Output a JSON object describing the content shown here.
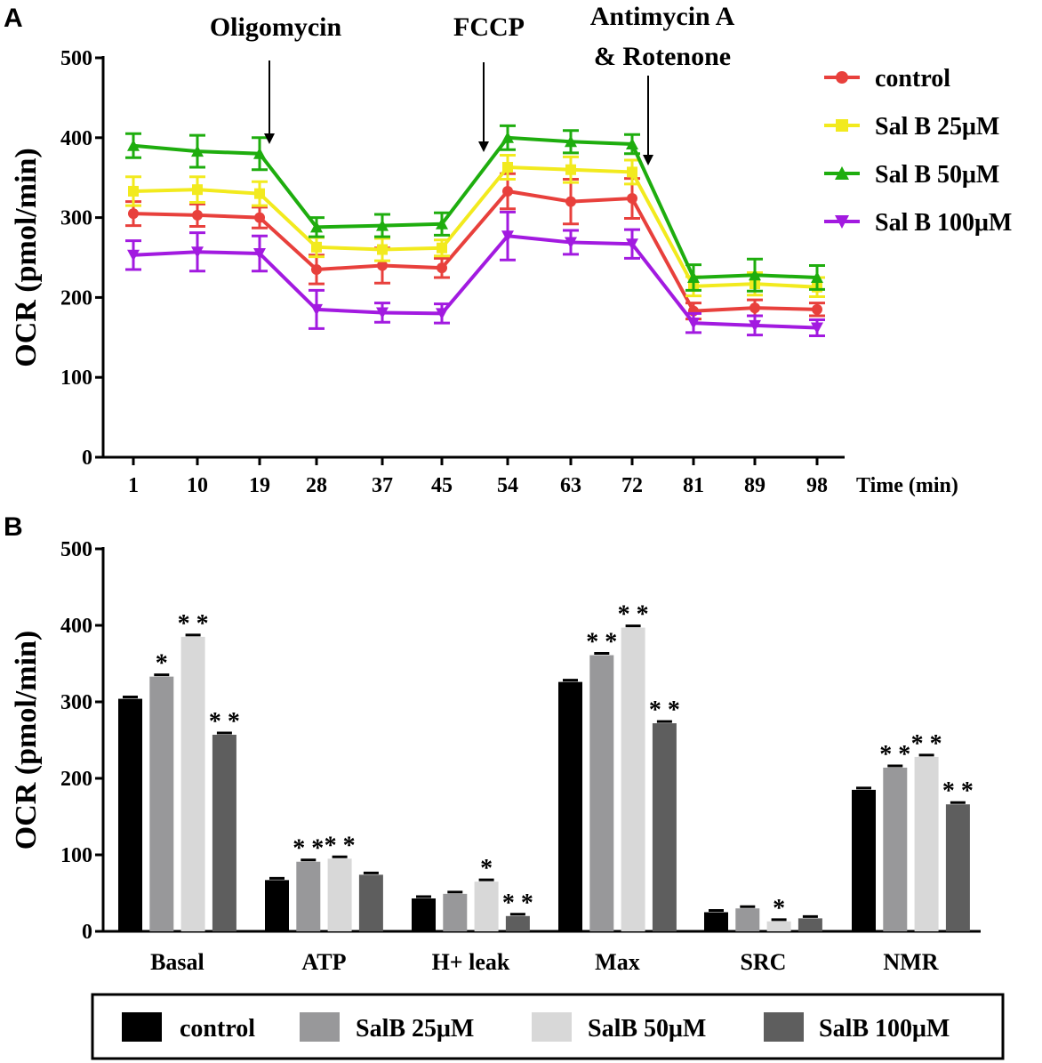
{
  "panel_labels": {
    "a": "A",
    "b": "B"
  },
  "chart_data": [
    {
      "type": "line",
      "panel": "A",
      "title": "",
      "xlabel": "Time (min)",
      "ylabel": "OCR (pmol/min)",
      "ylim": [
        0,
        500
      ],
      "yticks": [
        "0",
        "100",
        "200",
        "300",
        "400",
        "500"
      ],
      "x": [
        "1",
        "10",
        "19",
        "28",
        "37",
        "45",
        "54",
        "63",
        "72",
        "81",
        "89",
        "98"
      ],
      "series": [
        {
          "name": "control",
          "color": "#e8403c",
          "marker": "circle",
          "values": [
            305,
            303,
            300,
            235,
            240,
            237,
            333,
            320,
            324,
            183,
            187,
            185
          ],
          "errors": [
            15,
            14,
            13,
            18,
            22,
            12,
            22,
            28,
            25,
            10,
            10,
            8
          ]
        },
        {
          "name": "Sal B 25μM",
          "color": "#f2ea1e",
          "marker": "square",
          "values": [
            333,
            335,
            330,
            263,
            260,
            262,
            363,
            360,
            357,
            214,
            217,
            213
          ],
          "errors": [
            18,
            16,
            15,
            12,
            14,
            10,
            15,
            16,
            15,
            12,
            14,
            12
          ]
        },
        {
          "name": "Sal B 50μM",
          "color": "#1ead0e",
          "marker": "triangle-up",
          "values": [
            390,
            383,
            380,
            288,
            290,
            292,
            400,
            395,
            392,
            225,
            228,
            225
          ],
          "errors": [
            15,
            20,
            20,
            12,
            14,
            14,
            15,
            14,
            12,
            16,
            20,
            15
          ]
        },
        {
          "name": "Sal B 100μM",
          "color": "#a21ae0",
          "marker": "triangle-down",
          "values": [
            253,
            257,
            255,
            185,
            181,
            180,
            277,
            269,
            267,
            168,
            165,
            162
          ],
          "errors": [
            18,
            24,
            22,
            24,
            12,
            12,
            30,
            15,
            18,
            12,
            12,
            10
          ]
        }
      ],
      "annotations": [
        {
          "lines": [
            "Oligomycin"
          ],
          "at_x_between": [
            19,
            28
          ]
        },
        {
          "lines": [
            "FCCP"
          ],
          "at_x_between": [
            45,
            54
          ]
        },
        {
          "lines": [
            "Antimycin A",
            "& Rotenone"
          ],
          "at_x_between": [
            72,
            81
          ]
        }
      ],
      "legend": "right"
    },
    {
      "type": "bar",
      "panel": "B",
      "title": "",
      "xlabel": "",
      "ylabel": "OCR (pmol/min)",
      "ylim": [
        0,
        500
      ],
      "yticks": [
        "0",
        "100",
        "200",
        "300",
        "400",
        "500"
      ],
      "categories": [
        "Basal",
        "ATP",
        "H+ leak",
        "Max",
        "SRC",
        "NMR"
      ],
      "series": [
        {
          "name": "control",
          "color": "#000000",
          "values": [
            304,
            67,
            43,
            326,
            25,
            185
          ],
          "sig": [
            "",
            "",
            "",
            "",
            "",
            ""
          ]
        },
        {
          "name": "SalB 25μM",
          "color": "#98989a",
          "values": [
            333,
            91,
            49,
            361,
            30,
            214
          ],
          "sig": [
            "*",
            "* *",
            "",
            "* *",
            "",
            "* *"
          ]
        },
        {
          "name": "SalB 50μM",
          "color": "#d8d8d8",
          "values": [
            385,
            95,
            65,
            397,
            13,
            228
          ],
          "sig": [
            "* *",
            "* *",
            "*",
            "* *",
            "*",
            "* *"
          ]
        },
        {
          "name": "SalB 100μM",
          "color": "#5e5e5e",
          "values": [
            257,
            74,
            20,
            272,
            17,
            166
          ],
          "sig": [
            "* *",
            "",
            "* *",
            "* *",
            "",
            "* *"
          ]
        }
      ],
      "legend": "bottom"
    }
  ]
}
